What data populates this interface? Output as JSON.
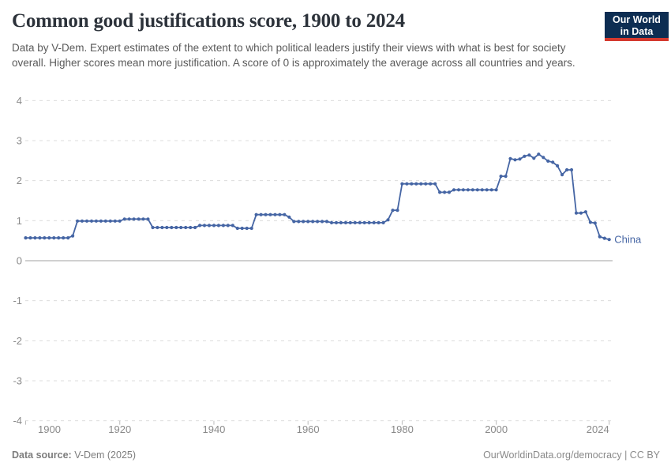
{
  "header": {
    "title": "Common good justifications score, 1900 to 2024",
    "subtitle": "Data by V-Dem. Expert estimates of the extent to which political leaders justify their views with what is best for society overall. Higher scores mean more justification. A score of 0 is approximately the average across all countries and years.",
    "logo": {
      "line1": "Our World",
      "line2": "in Data",
      "bg_color": "#0d2d52",
      "stripe_color": "#d4392e"
    }
  },
  "chart_data": {
    "type": "line",
    "title": "Common good justifications score, 1900 to 2024",
    "xlabel": "",
    "ylabel": "",
    "xlim": [
      1900,
      2024
    ],
    "ylim": [
      -4,
      4
    ],
    "xticks": [
      1900,
      1920,
      1940,
      1960,
      1980,
      2000,
      2024
    ],
    "yticks": [
      4,
      3,
      2,
      1,
      0,
      -1,
      -2,
      -3,
      -4
    ],
    "grid": "horizontal-dashed",
    "zero_line": true,
    "legend_position": "line-end-label",
    "series": [
      {
        "name": "China",
        "color": "#4565a4",
        "x_start": 1900,
        "x_end": 2024,
        "x_step": 1,
        "values": [
          0.57,
          0.57,
          0.57,
          0.57,
          0.57,
          0.57,
          0.57,
          0.57,
          0.57,
          0.57,
          0.62,
          0.99,
          0.99,
          0.99,
          0.99,
          0.99,
          0.99,
          0.99,
          0.99,
          0.99,
          0.99,
          1.04,
          1.04,
          1.04,
          1.04,
          1.04,
          1.04,
          0.83,
          0.83,
          0.83,
          0.83,
          0.83,
          0.83,
          0.83,
          0.83,
          0.83,
          0.83,
          0.88,
          0.88,
          0.88,
          0.88,
          0.88,
          0.88,
          0.88,
          0.88,
          0.81,
          0.81,
          0.81,
          0.81,
          1.15,
          1.15,
          1.15,
          1.15,
          1.15,
          1.15,
          1.15,
          1.09,
          0.98,
          0.98,
          0.98,
          0.98,
          0.98,
          0.98,
          0.98,
          0.98,
          0.95,
          0.95,
          0.95,
          0.95,
          0.95,
          0.95,
          0.95,
          0.95,
          0.95,
          0.95,
          0.95,
          0.95,
          1.02,
          1.26,
          1.26,
          1.92,
          1.92,
          1.92,
          1.92,
          1.92,
          1.92,
          1.92,
          1.92,
          1.71,
          1.71,
          1.71,
          1.77,
          1.77,
          1.77,
          1.77,
          1.77,
          1.77,
          1.77,
          1.77,
          1.77,
          1.77,
          2.11,
          2.11,
          2.55,
          2.52,
          2.54,
          2.61,
          2.64,
          2.56,
          2.66,
          2.58,
          2.49,
          2.46,
          2.37,
          2.15,
          2.27,
          2.27,
          1.19,
          1.19,
          1.22,
          0.96,
          0.94,
          0.6,
          0.56,
          0.53
        ]
      }
    ]
  },
  "footer": {
    "data_source_label": "Data source:",
    "data_source_value": " V-Dem (2025)",
    "attribution": "OurWorldinData.org/democracy | CC BY"
  }
}
